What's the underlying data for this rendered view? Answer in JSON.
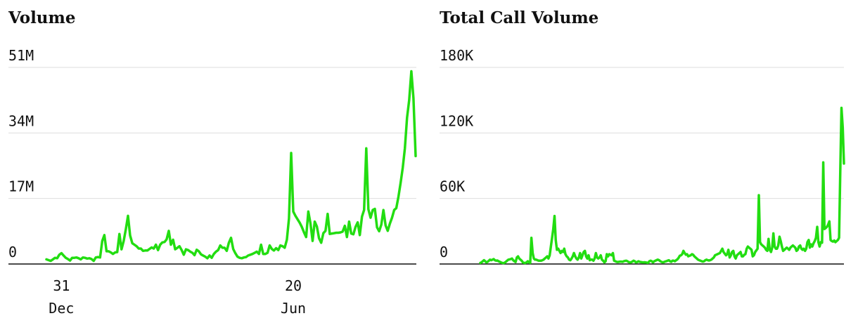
{
  "colors": {
    "series": "#22dd11",
    "grid": "#dddddd",
    "axis": "#111111",
    "text": "#111111"
  },
  "chart_data": [
    {
      "type": "line",
      "title": "Volume",
      "y_tick_labels": [
        "0",
        "17M",
        "34M",
        "51M"
      ],
      "y_ticks": [
        0,
        17000000,
        34000000,
        51000000
      ],
      "ylim": [
        0,
        51000000
      ],
      "x_tick_labels": [
        {
          "day": "31",
          "month": "Dec",
          "index": 7
        },
        {
          "day": "20",
          "month": "Jun",
          "index": 115
        }
      ],
      "grid": true,
      "series": [
        {
          "values": [
            1200000,
            1000000,
            800000,
            1200000,
            1600000,
            1500000,
            2400000,
            2800000,
            2200000,
            1600000,
            1300000,
            900000,
            1600000,
            1600000,
            1700000,
            1500000,
            1200000,
            1700000,
            1600000,
            1400000,
            1500000,
            1300000,
            800000,
            1700000,
            1800000,
            1700000,
            6000000,
            7500000,
            3300000,
            3300000,
            3000000,
            2600000,
            3000000,
            3100000,
            7800000,
            3800000,
            6000000,
            9000000,
            12500000,
            7400000,
            5400000,
            5000000,
            4600000,
            4000000,
            4000000,
            3400000,
            3500000,
            3500000,
            3900000,
            4300000,
            4000000,
            5000000,
            3600000,
            5000000,
            5600000,
            5700000,
            6400000,
            8600000,
            5000000,
            6300000,
            3800000,
            4200000,
            4600000,
            3600000,
            2400000,
            3800000,
            3600000,
            3200000,
            2900000,
            2300000,
            3700000,
            3300000,
            2500000,
            2200000,
            1900000,
            1500000,
            2200000,
            1600000,
            2600000,
            3200000,
            3600000,
            4800000,
            4200000,
            4200000,
            3400000,
            5500000,
            6800000,
            3900000,
            2800000,
            1900000,
            1600000,
            1500000,
            1700000,
            1800000,
            2200000,
            2400000,
            2600000,
            2900000,
            3200000,
            2600000,
            5000000,
            2600000,
            2600000,
            2900000,
            4800000,
            3900000,
            3500000,
            4100000,
            3600000,
            4800000,
            4600000,
            4200000,
            6300000,
            11800000,
            28800000,
            13600000,
            12500000,
            11600000,
            10700000,
            9600000,
            8200000,
            7000000,
            13600000,
            10600000,
            6000000,
            11000000,
            9700000,
            6700000,
            5500000,
            8000000,
            8600000,
            13000000,
            7800000,
            7900000,
            8000000,
            8100000,
            8100000,
            8200000,
            8400000,
            9900000,
            7000000,
            11000000,
            7900000,
            7700000,
            9600000,
            10800000,
            7500000,
            12300000,
            14000000,
            30000000,
            14200000,
            12000000,
            14000000,
            14300000,
            9500000,
            8500000,
            10200000,
            14000000,
            10000000,
            8600000,
            10500000,
            12000000,
            14000000,
            14500000,
            17500000,
            21000000,
            25000000,
            30000000,
            38000000,
            42500000,
            50000000,
            43000000,
            28000000
          ]
        }
      ]
    },
    {
      "type": "line",
      "title": "Total Call Volume",
      "y_tick_labels": [
        "0",
        "60K",
        "120K",
        "180K"
      ],
      "y_ticks": [
        0,
        60000,
        120000,
        180000
      ],
      "ylim": [
        0,
        180000
      ],
      "x_tick_labels": [],
      "grid": true,
      "series": [
        {
          "values": [
            1000,
            1500,
            2500,
            3500,
            2500,
            1500,
            2000,
            3000,
            4000,
            3500,
            4000,
            4500,
            3500,
            3000,
            3200,
            2500,
            2000,
            1500,
            1000,
            800,
            1200,
            2000,
            3000,
            4000,
            4200,
            4500,
            5000,
            3500,
            2500,
            1800,
            6000,
            7000,
            5000,
            4000,
            3000,
            1500,
            1000,
            900,
            1500,
            2500,
            1500,
            1000,
            24000,
            10000,
            5000,
            4000,
            4000,
            3500,
            3000,
            3000,
            3000,
            3500,
            4000,
            5000,
            6000,
            7000,
            5000,
            8000,
            16000,
            24000,
            32000,
            44000,
            22000,
            13000,
            14000,
            12000,
            10000,
            12000,
            11000,
            14000,
            9000,
            7000,
            6000,
            4000,
            3500,
            5000,
            7000,
            10000,
            7000,
            5000,
            4000,
            6000,
            10000,
            5000,
            8000,
            11000,
            12000,
            7000,
            5000,
            8000,
            3500,
            4000,
            4000,
            3000,
            5000,
            10000,
            6000,
            5000,
            6000,
            8000,
            4000,
            3000,
            1500,
            2500,
            9000,
            7000,
            9000,
            8500,
            8000,
            10000,
            3000,
            2500,
            2000,
            1800,
            2000,
            2200,
            2200,
            2000,
            2500,
            2800,
            3000,
            2500,
            1800,
            1500,
            1600,
            2200,
            3000,
            2500,
            1500,
            1800,
            2500,
            2000,
            1800,
            1600,
            1500,
            1600,
            1500,
            1200,
            1100,
            2500,
            3000,
            2500,
            1500,
            2500,
            3000,
            3600,
            4000,
            3500,
            2500,
            2000,
            1500,
            1800,
            2300,
            2600,
            3000,
            3500,
            2500,
            2000,
            3000,
            3000,
            2500,
            3500,
            4200,
            5500,
            7500,
            8000,
            9000,
            12000,
            10000,
            8500,
            9000,
            7000,
            7500,
            8000,
            9000,
            8500,
            7000,
            6000,
            5000,
            4000,
            3500,
            3000,
            2500,
            2200,
            2500,
            3500,
            4000,
            3500,
            3200,
            3500,
            4000,
            5000,
            6000,
            8000,
            8500,
            9000,
            9500,
            10000,
            12000,
            14000,
            11000,
            9500,
            8000,
            9000,
            13000,
            6000,
            8000,
            11000,
            12000,
            7000,
            5000,
            8000,
            9000,
            10000,
            11000,
            7000,
            7000,
            8500,
            9000,
            14000,
            16000,
            15000,
            14000,
            13000,
            7000,
            8000,
            11000,
            12500,
            14000,
            63000,
            20000,
            18000,
            17000,
            16000,
            15000,
            13000,
            12000,
            23000,
            13000,
            11000,
            15000,
            28000,
            16000,
            14000,
            14000,
            17000,
            25000,
            21000,
            16000,
            12000,
            13000,
            14000,
            15000,
            14000,
            13000,
            15000,
            16000,
            17000,
            16000,
            15000,
            12000,
            13000,
            16000,
            17000,
            14000,
            13000,
            14000,
            12000,
            14000,
            20000,
            22000,
            15000,
            18000,
            16000,
            19000,
            21000,
            24000,
            34000,
            20000,
            16000,
            20000,
            19500,
            93000,
            32000,
            33000,
            34000,
            36000,
            39000,
            22000,
            21000,
            20500,
            21500,
            20000,
            21000,
            22000,
            24000,
            85000,
            143000,
            125000,
            92000
          ]
        }
      ]
    }
  ]
}
